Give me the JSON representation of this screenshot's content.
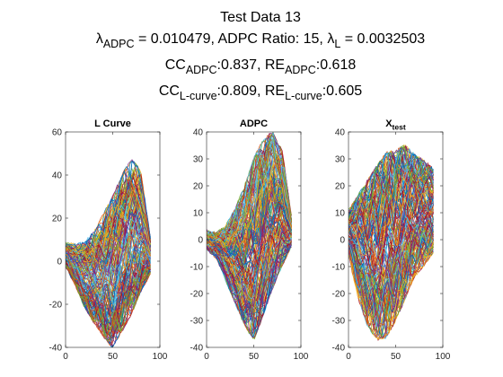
{
  "figure": {
    "title_lines": [
      [
        {
          "t": "Test Data 13"
        }
      ],
      [
        {
          "t": "λ"
        },
        {
          "t": "ADPC",
          "sub": true
        },
        {
          "t": " = 0.010479, ADPC Ratio: 15, "
        },
        {
          "t": "λ"
        },
        {
          "t": "L",
          "sub": true
        },
        {
          "t": " = 0.0032503"
        }
      ],
      [
        {
          "t": "CC"
        },
        {
          "t": "ADPC",
          "sub": true
        },
        {
          "t": ":0.837, RE"
        },
        {
          "t": "ADPC",
          "sub": true
        },
        {
          "t": ":0.618"
        }
      ],
      [
        {
          "t": "CC"
        },
        {
          "t": "L-curve",
          "sub": true
        },
        {
          "t": ":0.809, RE"
        },
        {
          "t": "L-curve",
          "sub": true
        },
        {
          "t": ":0.605"
        }
      ]
    ]
  },
  "chart_data": [
    {
      "type": "line",
      "title": [
        {
          "t": "L Curve"
        }
      ],
      "xlabel": "",
      "ylabel": "",
      "xlim": [
        0,
        100
      ],
      "ylim": [
        -40,
        60
      ],
      "xticks": [
        0,
        50,
        100
      ],
      "yticks": [
        -40,
        -20,
        0,
        20,
        40,
        60
      ],
      "grid": false,
      "x_range": [
        0,
        90
      ],
      "n_series": 180,
      "envelope": {
        "x": [
          0,
          10,
          20,
          30,
          40,
          50,
          60,
          70,
          80,
          90
        ],
        "upper": [
          8,
          7,
          8,
          12,
          20,
          28,
          38,
          45,
          40,
          10
        ],
        "lower": [
          -2,
          -10,
          -20,
          -27,
          -33,
          -38,
          -30,
          -22,
          -12,
          -5
        ]
      },
      "series_note": "many overlapping measurement curves"
    },
    {
      "type": "line",
      "title": [
        {
          "t": "ADPC"
        }
      ],
      "xlabel": "",
      "ylabel": "",
      "xlim": [
        0,
        100
      ],
      "ylim": [
        -40,
        40
      ],
      "xticks": [
        0,
        50,
        100
      ],
      "yticks": [
        -40,
        -30,
        -20,
        -10,
        0,
        10,
        20,
        30,
        40
      ],
      "grid": false,
      "x_range": [
        0,
        90
      ],
      "n_series": 180,
      "envelope": {
        "x": [
          0,
          10,
          20,
          30,
          40,
          50,
          60,
          70,
          80,
          90
        ],
        "upper": [
          3,
          2,
          4,
          10,
          18,
          28,
          35,
          38,
          32,
          8
        ],
        "lower": [
          -3,
          -6,
          -14,
          -22,
          -30,
          -35,
          -26,
          -16,
          -8,
          -2
        ]
      },
      "series_note": "many overlapping reconstructed curves"
    },
    {
      "type": "line",
      "title": [
        {
          "t": "X"
        },
        {
          "t": "test",
          "sub": true
        }
      ],
      "xlabel": "",
      "ylabel": "",
      "xlim": [
        0,
        100
      ],
      "ylim": [
        -40,
        40
      ],
      "xticks": [
        0,
        50,
        100
      ],
      "yticks": [
        -40,
        -30,
        -20,
        -10,
        0,
        10,
        20,
        30,
        40
      ],
      "grid": false,
      "x_range": [
        0,
        90
      ],
      "n_series": 180,
      "envelope": {
        "x": [
          0,
          10,
          20,
          30,
          40,
          50,
          60,
          70,
          80,
          90
        ],
        "upper": [
          10,
          15,
          20,
          25,
          30,
          31,
          33,
          30,
          28,
          25
        ],
        "lower": [
          -5,
          -20,
          -30,
          -35,
          -34,
          -28,
          -20,
          -12,
          -8,
          -4
        ]
      },
      "series_note": "many overlapping test curves"
    }
  ],
  "colors": {
    "line_cycle": [
      "#0072BD",
      "#D95319",
      "#EDB120",
      "#7E2F8E",
      "#77AC30",
      "#4DBEEE",
      "#A2142F"
    ],
    "axes": "#262626",
    "background": "#ffffff"
  }
}
